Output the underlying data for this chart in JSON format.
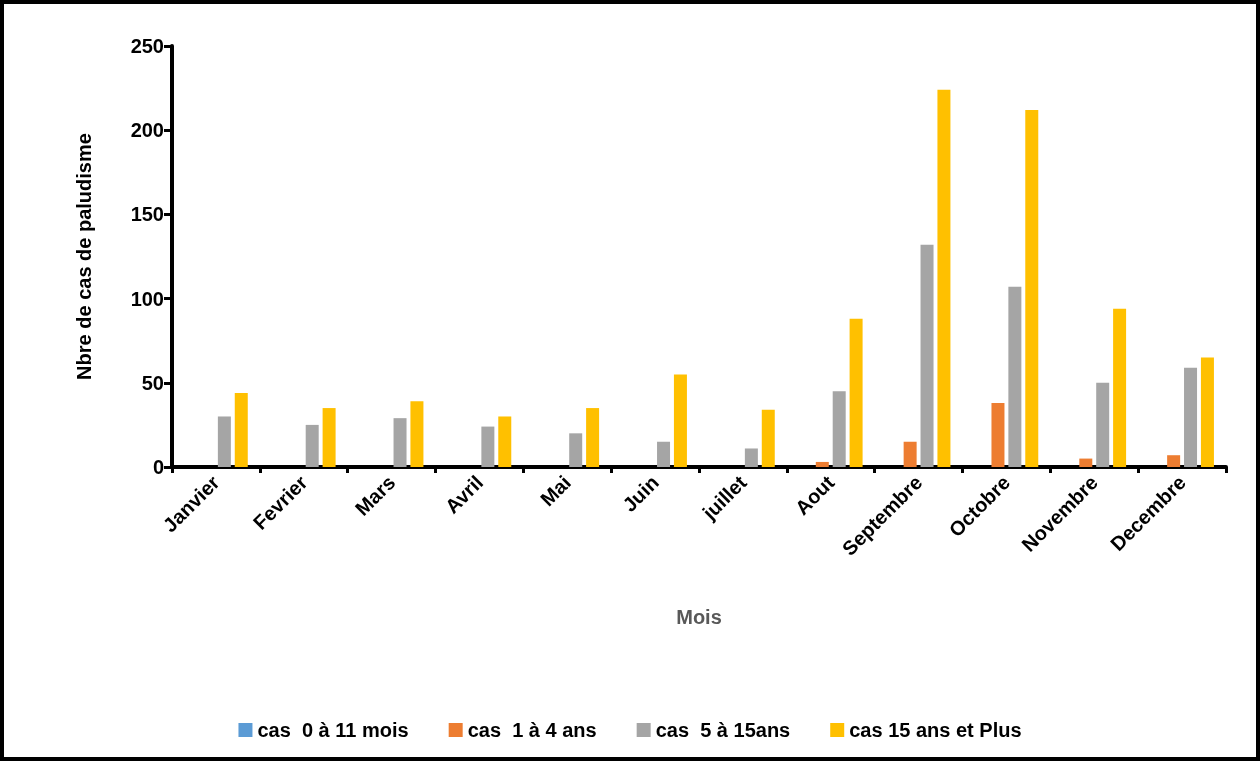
{
  "chart_data": {
    "type": "bar",
    "xlabel": "Mois",
    "ylabel": "Nbre de cas de paludisme",
    "categories": [
      "Janvier",
      "Fevrier",
      "Mars",
      "Avril",
      "Mai",
      "Juin",
      "juillet",
      "Aout",
      "Septembre",
      "Octobre",
      "Novembre",
      "Decembre"
    ],
    "series": [
      {
        "name": "cas  0 à 11 mois",
        "color": "#5b9bd5",
        "values": [
          0,
          0,
          0,
          0,
          0,
          0,
          0,
          0,
          0,
          0,
          0,
          0
        ]
      },
      {
        "name": "cas  1 à 4 ans",
        "color": "#ed7d31",
        "values": [
          0,
          0,
          0,
          0,
          0,
          0,
          0,
          3,
          15,
          38,
          5,
          7
        ]
      },
      {
        "name": "cas  5 à 15ans",
        "color": "#a5a5a5",
        "values": [
          30,
          25,
          29,
          24,
          20,
          15,
          11,
          45,
          132,
          107,
          50,
          59
        ]
      },
      {
        "name": "cas 15 ans et Plus",
        "color": "#ffc000",
        "values": [
          44,
          35,
          39,
          30,
          35,
          55,
          34,
          88,
          224,
          212,
          94,
          65
        ]
      }
    ],
    "ylim": [
      0,
      250
    ],
    "yticks": [
      0,
      50,
      100,
      150,
      200,
      250
    ],
    "grid": false,
    "legend": "bottom"
  }
}
